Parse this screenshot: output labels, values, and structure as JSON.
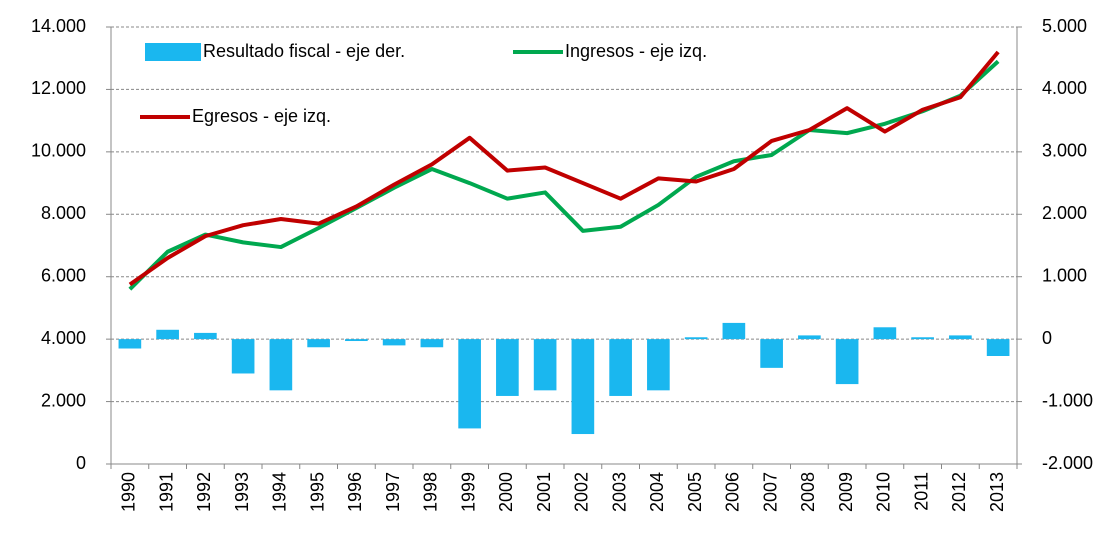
{
  "chart_data": {
    "type": "bar_line_dual_axis",
    "categories": [
      "1990",
      "1991",
      "1992",
      "1993",
      "1994",
      "1995",
      "1996",
      "1997",
      "1998",
      "1999",
      "2000",
      "2001",
      "2002",
      "2003",
      "2004",
      "2005",
      "2006",
      "2007",
      "2008",
      "2009",
      "2010",
      "2011",
      "2012",
      "2013"
    ],
    "series": [
      {
        "name": "Resultado fiscal - eje der.",
        "type": "bar",
        "axis": "y2",
        "color": "#1ab7ef",
        "values": [
          -150,
          150,
          100,
          -550,
          -820,
          -130,
          -30,
          -100,
          -130,
          -1430,
          -910,
          -820,
          -1520,
          -910,
          -820,
          30,
          260,
          -460,
          60,
          -720,
          190,
          30,
          60,
          -270
        ]
      },
      {
        "name": "Ingresos - eje izq.",
        "type": "line",
        "color": "#00a84f",
        "values": [
          5600,
          6800,
          7350,
          7100,
          6950,
          7560,
          8200,
          8850,
          9450,
          9000,
          8500,
          8700,
          7470,
          7600,
          8300,
          9200,
          9700,
          9900,
          10700,
          10600,
          10900,
          11300,
          11800,
          12900
        ]
      },
      {
        "name": "Egresos - eje izq.",
        "type": "line",
        "color": "#c00000",
        "values": [
          5750,
          6600,
          7300,
          7650,
          7850,
          7700,
          8250,
          8950,
          9600,
          10450,
          9400,
          9500,
          9000,
          8500,
          9150,
          9050,
          9450,
          10350,
          10700,
          11400,
          10650,
          11350,
          11750,
          13200
        ]
      }
    ],
    "ylim": [
      0,
      14000
    ],
    "yticks": [
      0,
      {
        "value": 2000,
        "label": "2.000"
      },
      {
        "value": 4000,
        "label": "4.000"
      },
      {
        "value": 6000,
        "label": "6.000"
      },
      {
        "value": 8000,
        "label": "8.000"
      },
      {
        "value": 10000,
        "label": "10.000"
      },
      {
        "value": 12000,
        "label": "12.000"
      },
      {
        "value": 14000,
        "label": "14.000"
      }
    ],
    "y2lim": [
      -2000,
      5000
    ],
    "y2ticks": [
      {
        "value": -2000,
        "label": "-2.000"
      },
      {
        "value": -1000,
        "label": "-1.000"
      },
      0,
      {
        "value": 1000,
        "label": "1.000"
      },
      {
        "value": 2000,
        "label": "2.000"
      },
      {
        "value": 3000,
        "label": "3.000"
      },
      {
        "value": 4000,
        "label": "4.000"
      },
      {
        "value": 5000,
        "label": "5.000"
      }
    ],
    "grid": true
  }
}
